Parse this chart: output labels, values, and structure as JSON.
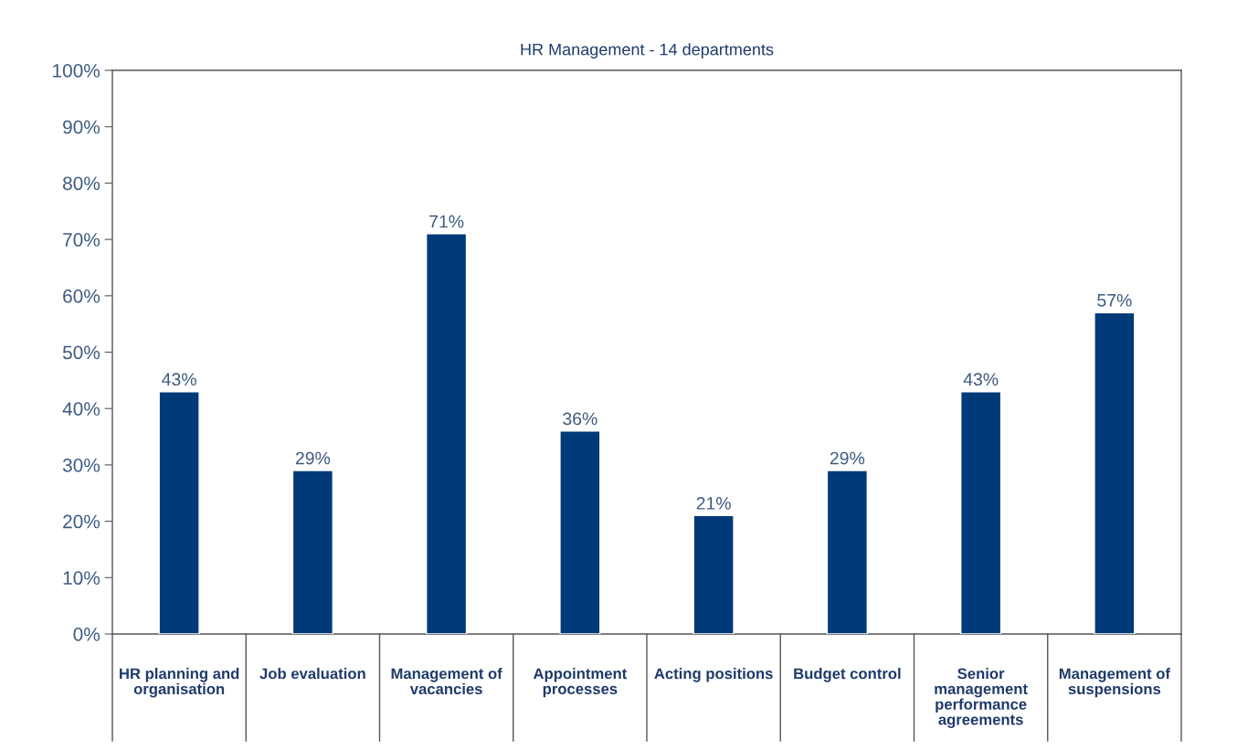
{
  "chart_data": {
    "type": "bar",
    "title": "HR Management - 14 departments",
    "categories": [
      "HR planning and organisation",
      "Job evaluation",
      "Management of vacancies",
      "Appointment processes",
      "Acting positions",
      "Budget control",
      "Senior management performance agreements",
      "Management of suspensions"
    ],
    "values": [
      43,
      29,
      71,
      36,
      21,
      29,
      43,
      57
    ],
    "value_labels": [
      "43%",
      "29%",
      "71%",
      "36%",
      "21%",
      "29%",
      "43%",
      "57%"
    ],
    "color": "#003a78",
    "ylim": [
      0,
      100
    ],
    "yticks": [
      {
        "value": 0,
        "label": "0%"
      },
      {
        "value": 10,
        "label": "10%"
      },
      {
        "value": 20,
        "label": "20%"
      },
      {
        "value": 30,
        "label": "30%"
      },
      {
        "value": 40,
        "label": "40%"
      },
      {
        "value": 50,
        "label": "50%"
      },
      {
        "value": 60,
        "label": "60%"
      },
      {
        "value": 70,
        "label": "70%"
      },
      {
        "value": 80,
        "label": "80%"
      },
      {
        "value": 90,
        "label": "90%"
      },
      {
        "value": 100,
        "label": "100%"
      }
    ],
    "grid": false
  }
}
